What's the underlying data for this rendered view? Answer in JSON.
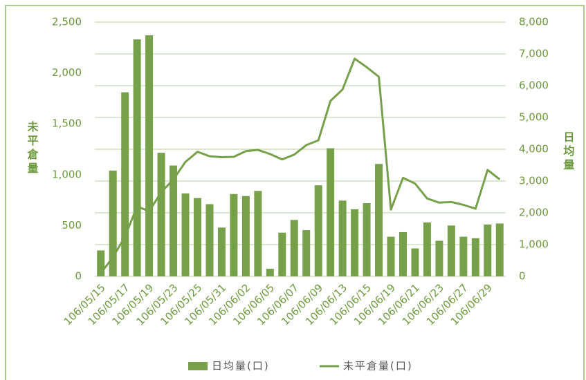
{
  "chart_data": {
    "type": "bar_line",
    "y_label": "未平倉量",
    "y2_label": "日均量",
    "categories": [
      "106/05/15",
      null,
      "106/05/17",
      null,
      "106/05/19",
      null,
      "106/05/23",
      null,
      "106/05/25",
      null,
      "106/05/31",
      null,
      "106/06/02",
      null,
      "106/06/05",
      null,
      "106/06/07",
      null,
      "106/06/09",
      null,
      "106/06/13",
      null,
      "106/06/15",
      null,
      "106/06/19",
      null,
      "106/06/21",
      null,
      "106/06/23",
      null,
      "106/06/27",
      null,
      "106/06/29",
      null
    ],
    "series": [
      {
        "name": "日均量(口)",
        "type": "bar",
        "color": "#77a04a",
        "axis": "y",
        "values": [
          255,
          1040,
          1810,
          2330,
          2370,
          1215,
          1090,
          815,
          770,
          710,
          480,
          810,
          790,
          840,
          75,
          430,
          555,
          455,
          895,
          1260,
          745,
          660,
          720,
          1105,
          390,
          435,
          275,
          530,
          350,
          500,
          390,
          375,
          510,
          520
        ]
      },
      {
        "name": "未平倉量(口)",
        "type": "line",
        "color": "#77a04a",
        "axis": "y2",
        "values": [
          100,
          600,
          1250,
          2200,
          2050,
          2650,
          3050,
          3600,
          3920,
          3780,
          3750,
          3760,
          3940,
          3980,
          3850,
          3680,
          3830,
          4130,
          4280,
          5520,
          5880,
          6850,
          6580,
          6280,
          2100,
          3100,
          2920,
          2450,
          2320,
          2340,
          2250,
          2130,
          3350,
          3050
        ]
      }
    ],
    "ylim": [
      0,
      2500
    ],
    "yticks": [
      0,
      500,
      {
        "value": 1000,
        "label": "1,000"
      },
      {
        "value": 1500,
        "label": "1,500"
      },
      {
        "value": 2000,
        "label": "2,000"
      },
      {
        "value": 2500,
        "label": "2,500"
      }
    ],
    "y2lim": [
      0,
      8000
    ],
    "y2ticks": [
      0,
      {
        "value": 1000,
        "label": "1,000"
      },
      {
        "value": 2000,
        "label": "2,000"
      },
      {
        "value": 3000,
        "label": "3,000"
      },
      {
        "value": 4000,
        "label": "4,000"
      },
      {
        "value": 5000,
        "label": "5,000"
      },
      {
        "value": 6000,
        "label": "6,000"
      },
      {
        "value": 7000,
        "label": "7,000"
      },
      {
        "value": 8000,
        "label": "8,000"
      }
    ],
    "grid": true
  }
}
